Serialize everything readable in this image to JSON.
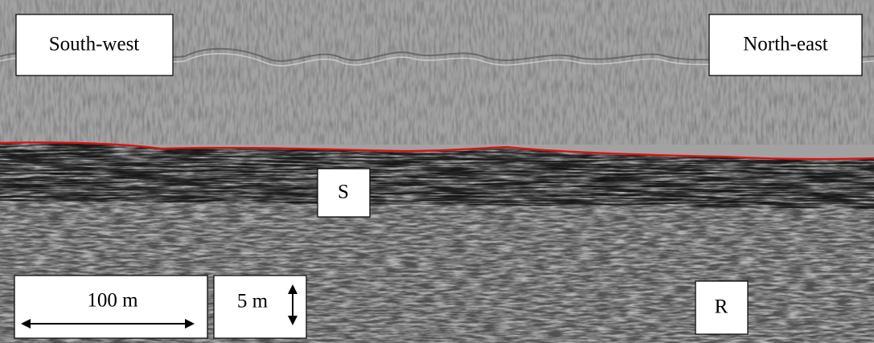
{
  "labels": {
    "left_direction": "South-west",
    "right_direction": "North-east",
    "upper_unit": "S",
    "lower_unit": "R"
  },
  "scale_bars": {
    "horizontal": "100 m",
    "vertical": "5 m"
  }
}
